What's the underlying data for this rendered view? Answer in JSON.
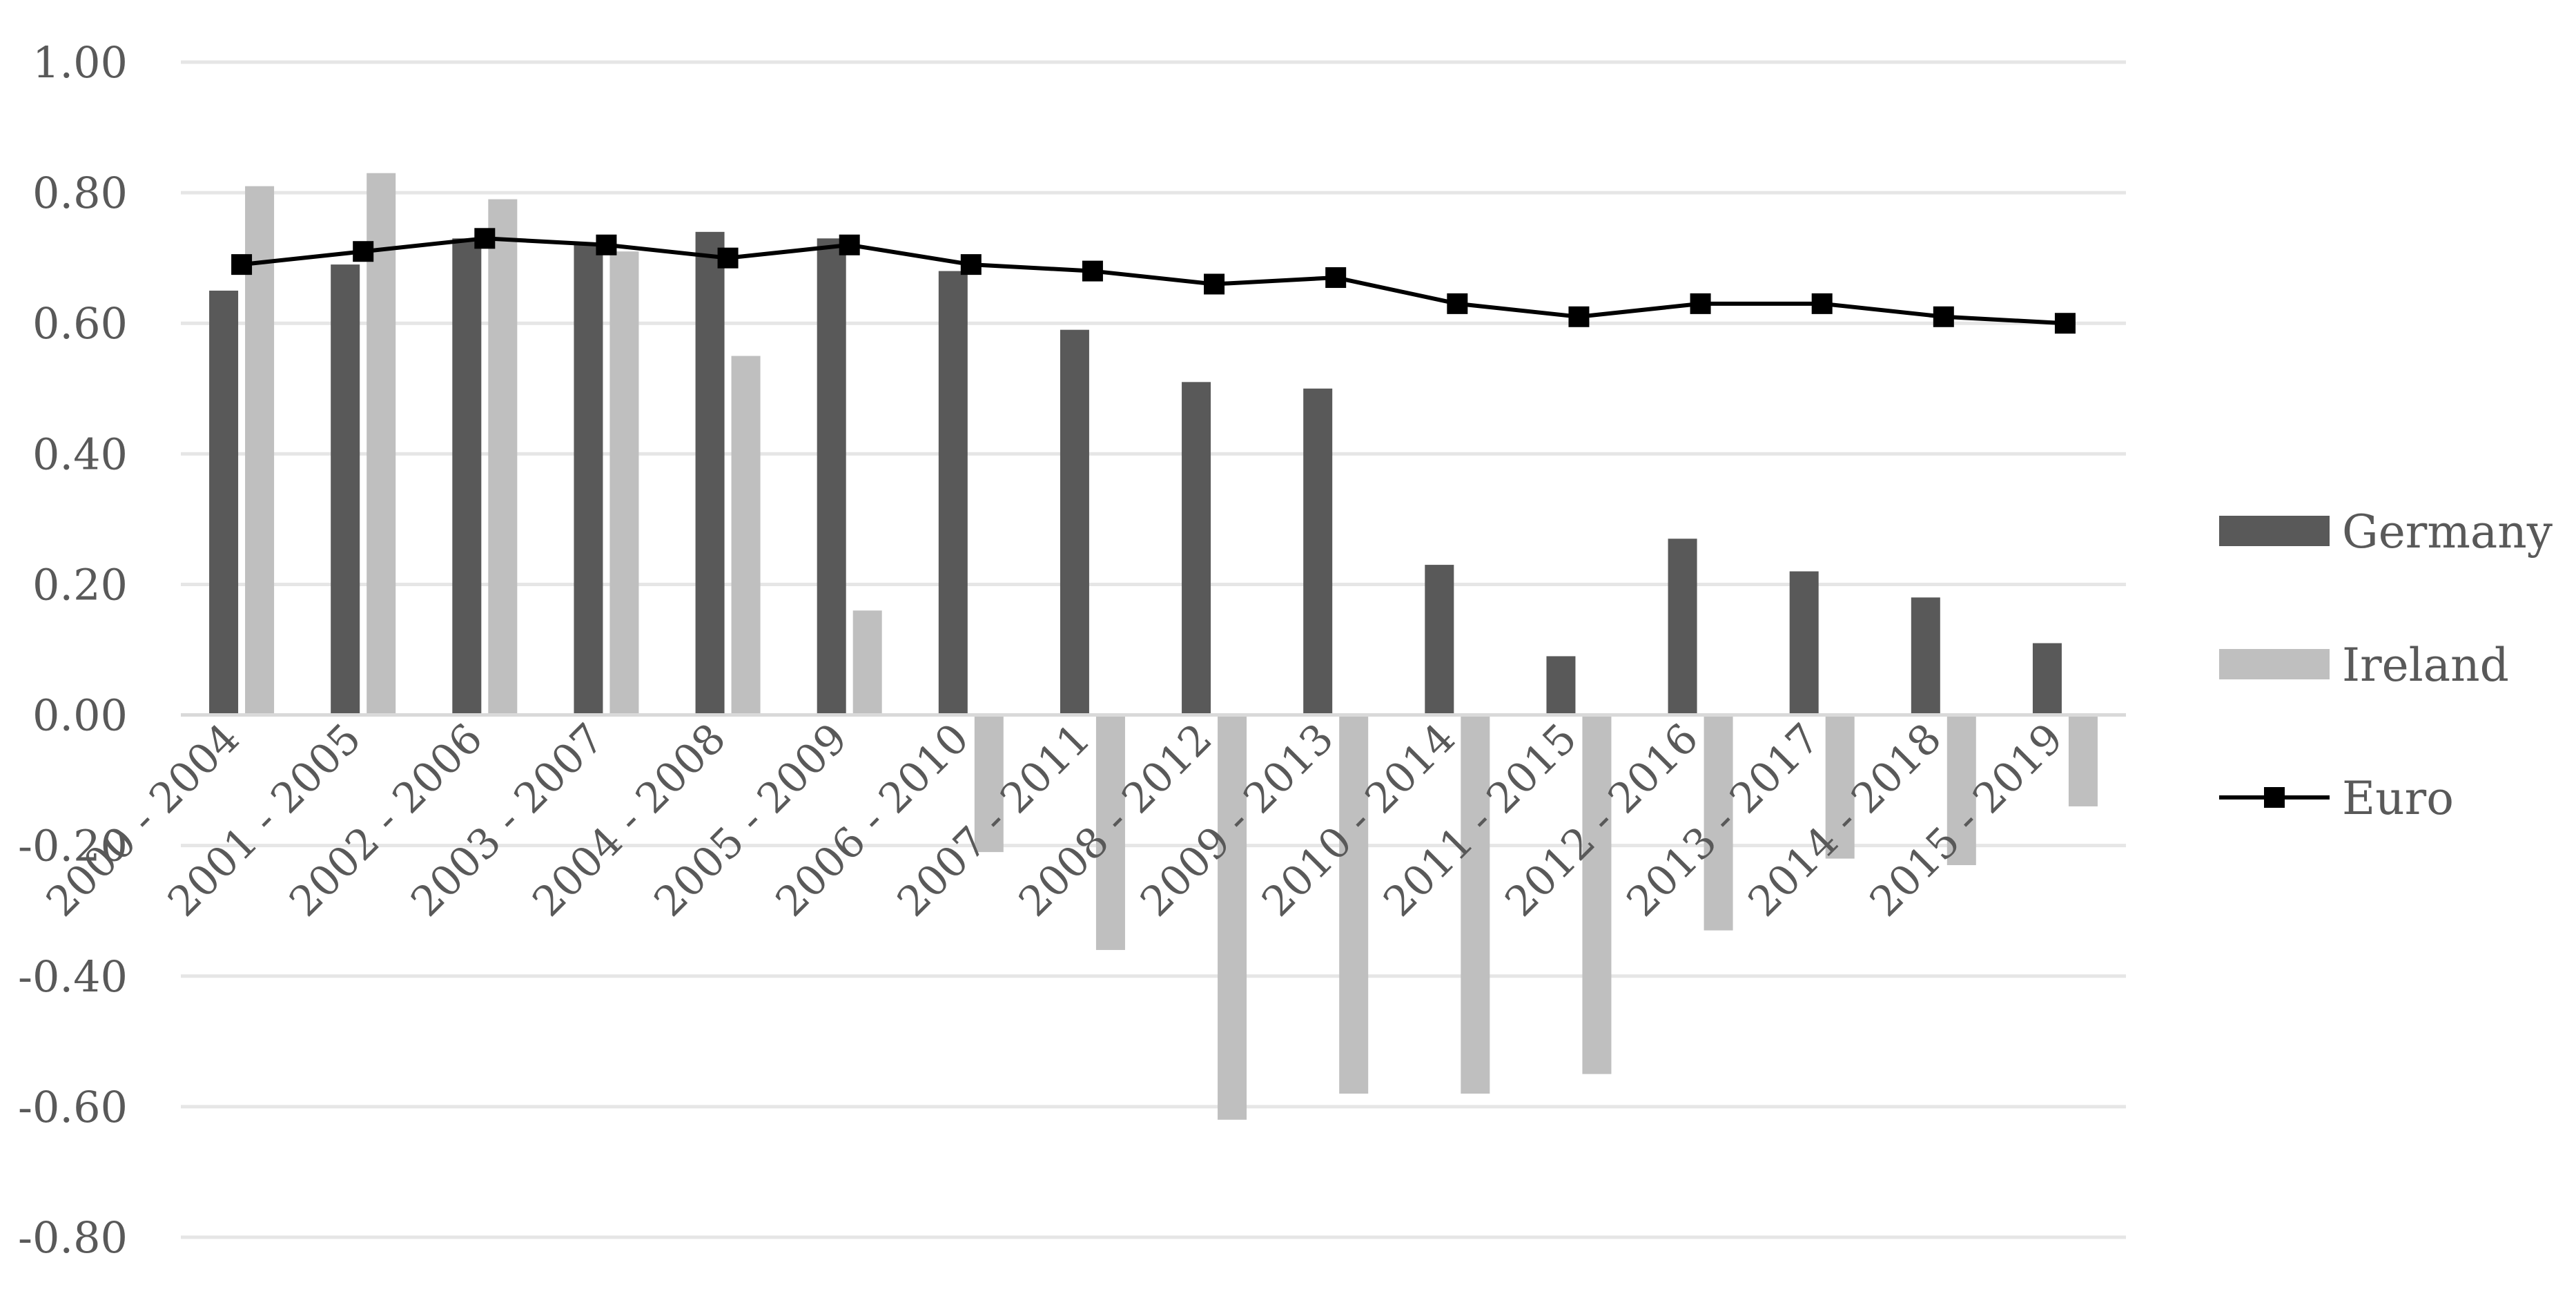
{
  "chart_data": {
    "type": "bar",
    "categories": [
      "2000 - 2004",
      "2001 - 2005",
      "2002 - 2006",
      "2003 - 2007",
      "2004 - 2008",
      "2005 - 2009",
      "2006 - 2010",
      "2007 - 2011",
      "2008 - 2012",
      "2009 - 2013",
      "2010 - 2014",
      "2011 - 2015",
      "2012 - 2016",
      "2013 - 2017",
      "2014 - 2018",
      "2015 - 2019"
    ],
    "series": [
      {
        "name": "Germany",
        "kind": "bar",
        "color": "#595959",
        "values": [
          0.65,
          0.69,
          0.73,
          0.72,
          0.74,
          0.73,
          0.68,
          0.59,
          0.51,
          0.5,
          0.23,
          0.09,
          0.27,
          0.22,
          0.18,
          0.11
        ]
      },
      {
        "name": "Ireland",
        "kind": "bar",
        "color": "#bfbfbf",
        "values": [
          0.81,
          0.83,
          0.79,
          0.71,
          0.55,
          0.16,
          -0.21,
          -0.36,
          -0.62,
          -0.58,
          -0.58,
          -0.55,
          -0.33,
          -0.22,
          -0.23,
          -0.14
        ]
      },
      {
        "name": "Euro",
        "kind": "line",
        "color": "#000000",
        "marker": "square",
        "values": [
          0.69,
          0.71,
          0.73,
          0.72,
          0.7,
          0.72,
          0.69,
          0.68,
          0.66,
          0.67,
          0.63,
          0.61,
          0.63,
          0.63,
          0.61,
          0.6
        ]
      }
    ],
    "ylim": [
      -0.8,
      1.0
    ],
    "yticks": [
      "1.00",
      "0.80",
      "0.60",
      "0.40",
      "0.20",
      "0.00",
      "-0.20",
      "-0.40",
      "-0.60",
      "-0.80"
    ],
    "ytick_values": [
      1.0,
      0.8,
      0.6,
      0.4,
      0.2,
      0.0,
      -0.2,
      -0.4,
      -0.6,
      -0.8
    ],
    "grid": true,
    "legend_position": "right",
    "title": "",
    "xlabel": "",
    "ylabel": ""
  }
}
